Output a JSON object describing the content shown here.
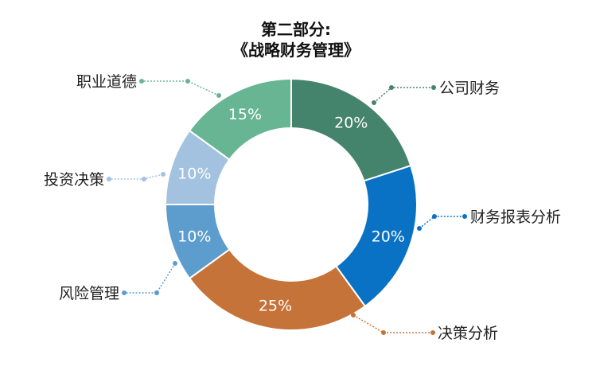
{
  "chart_data": {
    "type": "pie",
    "title_lines": [
      "第二部分:",
      "《战略财务管理》"
    ],
    "categories": [
      "公司财务",
      "财务报表分析",
      "决策分析",
      "风险管理",
      "投资决策",
      "职业道德"
    ],
    "values": [
      20,
      20,
      25,
      10,
      10,
      15
    ],
    "value_labels": [
      "20%",
      "20%",
      "25%",
      "10%",
      "10%",
      "15%"
    ],
    "colors": [
      "#44836c",
      "#0a72c4",
      "#c6733a",
      "#5c9dce",
      "#a3c2df",
      "#68b593"
    ],
    "unit": "%",
    "donut": true,
    "legend": "callouts"
  }
}
